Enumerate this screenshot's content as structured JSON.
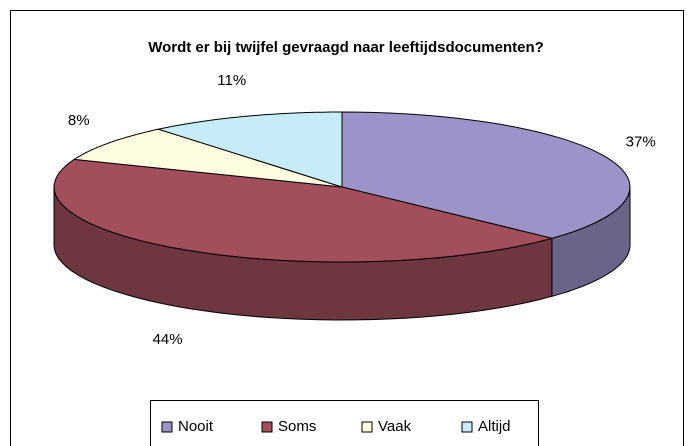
{
  "chart_data": {
    "type": "pie3d",
    "title": "Wordt er bij twijfel gevraagd naar leeftijdsdocumenten?",
    "categories": [
      "Nooit",
      "Soms",
      "Vaak",
      "Altijd"
    ],
    "values": [
      37,
      44,
      8,
      11
    ],
    "value_labels": [
      "37%",
      "44%",
      "8%",
      "11%"
    ],
    "colors": [
      "#9c93c8",
      "#a24f5b",
      "#fffde0",
      "#c6ecf8"
    ],
    "legend": "bottom"
  }
}
